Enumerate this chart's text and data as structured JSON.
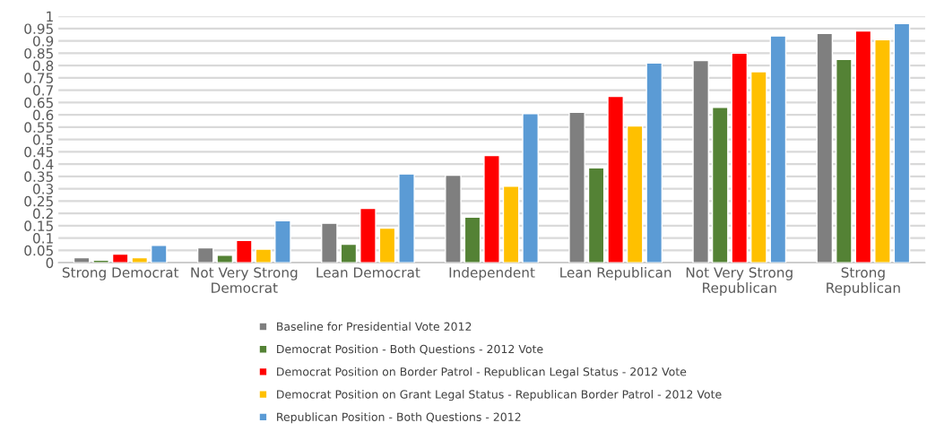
{
  "chart_data": {
    "type": "bar",
    "categories": [
      "Strong Democrat",
      "Not Very Strong Democrat",
      "Lean Democrat",
      "Independent",
      "Lean Republican",
      "Not Very Strong Republican",
      "Strong Republican"
    ],
    "series": [
      {
        "name": "Baseline for Presidential Vote 2012",
        "color": "#7f7f7f",
        "values": [
          0.02,
          0.06,
          0.16,
          0.355,
          0.61,
          0.82,
          0.93
        ]
      },
      {
        "name": "Democrat Position - Both Questions - 2012 Vote",
        "color": "#548235",
        "values": [
          0.01,
          0.03,
          0.075,
          0.185,
          0.385,
          0.63,
          0.825
        ]
      },
      {
        "name": "Democrat Position on Border Patrol - Republican Legal Status - 2012 Vote",
        "color": "#ff0000",
        "values": [
          0.035,
          0.09,
          0.22,
          0.435,
          0.675,
          0.85,
          0.94
        ]
      },
      {
        "name": "Democrat Position on Grant Legal Status - Republican Border Patrol - 2012 Vote",
        "color": "#ffc000",
        "values": [
          0.02,
          0.055,
          0.14,
          0.31,
          0.555,
          0.775,
          0.905
        ]
      },
      {
        "name": "Republican Position - Both Questions - 2012",
        "color": "#5b9bd5",
        "values": [
          0.07,
          0.17,
          0.36,
          0.605,
          0.81,
          0.92,
          0.97
        ]
      }
    ],
    "ylim": [
      0,
      1
    ],
    "yticks": [
      0,
      0.05,
      0.1,
      0.15,
      0.2,
      0.25,
      0.3,
      0.35,
      0.4,
      0.45,
      0.5,
      0.55,
      0.6,
      0.65,
      0.7,
      0.75,
      0.8,
      0.85,
      0.9,
      0.95,
      1
    ],
    "grid": "y",
    "legend": "bottom"
  }
}
